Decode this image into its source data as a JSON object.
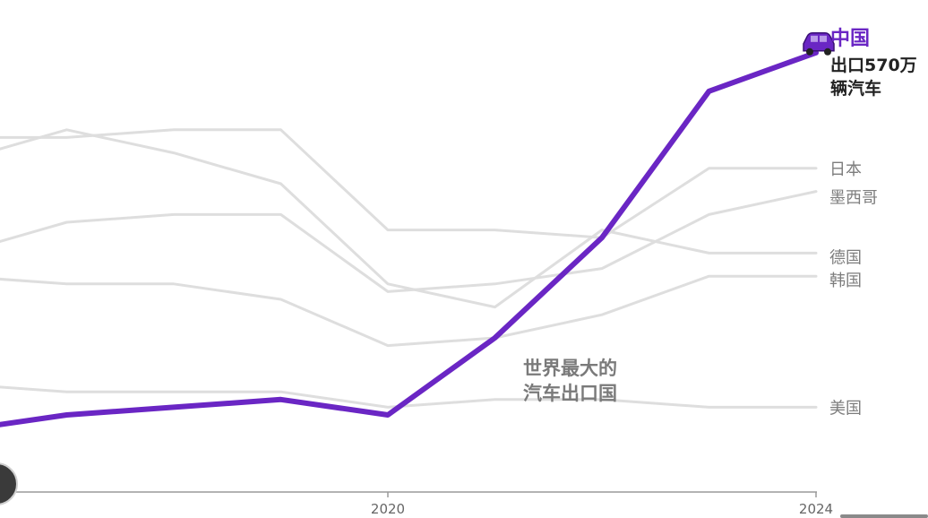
{
  "chart_data": {
    "type": "line",
    "x_ticks": [
      "2020",
      "2024"
    ],
    "x": [
      2016,
      2017,
      2018,
      2019,
      2020,
      2021,
      2022,
      2023,
      2024
    ],
    "highlight": {
      "name": "中国",
      "note_lines": [
        "出口570万",
        "辆汽车"
      ],
      "color": "#6a26c4",
      "values": [
        0.8,
        1.0,
        1.1,
        1.2,
        1.0,
        2.0,
        3.3,
        5.2,
        5.7
      ]
    },
    "series": [
      {
        "name": "日本",
        "color": "#dedede",
        "values": [
          4.6,
          4.6,
          4.7,
          4.7,
          3.4,
          3.4,
          3.3,
          4.2,
          4.2
        ]
      },
      {
        "name": "墨西哥",
        "color": "#dedede",
        "values": [
          3.1,
          3.5,
          3.6,
          3.6,
          2.6,
          2.7,
          2.9,
          3.6,
          3.9
        ]
      },
      {
        "name": "德国",
        "color": "#dedede",
        "values": [
          4.3,
          4.7,
          4.4,
          4.0,
          2.7,
          2.4,
          3.4,
          3.1,
          3.1
        ]
      },
      {
        "name": "韩国",
        "color": "#dedede",
        "values": [
          2.8,
          2.7,
          2.7,
          2.5,
          1.9,
          2.0,
          2.3,
          2.8,
          2.8
        ]
      },
      {
        "name": "美国",
        "color": "#dedede",
        "values": [
          1.4,
          1.3,
          1.3,
          1.3,
          1.1,
          1.2,
          1.2,
          1.1,
          1.1
        ]
      }
    ],
    "annotation_lines": [
      "世界最大的",
      "汽车出口国"
    ],
    "car_icon": "car-icon"
  },
  "controls": {
    "play_icon": "play-icon",
    "scroll_indicator": "scroll-indicator"
  }
}
